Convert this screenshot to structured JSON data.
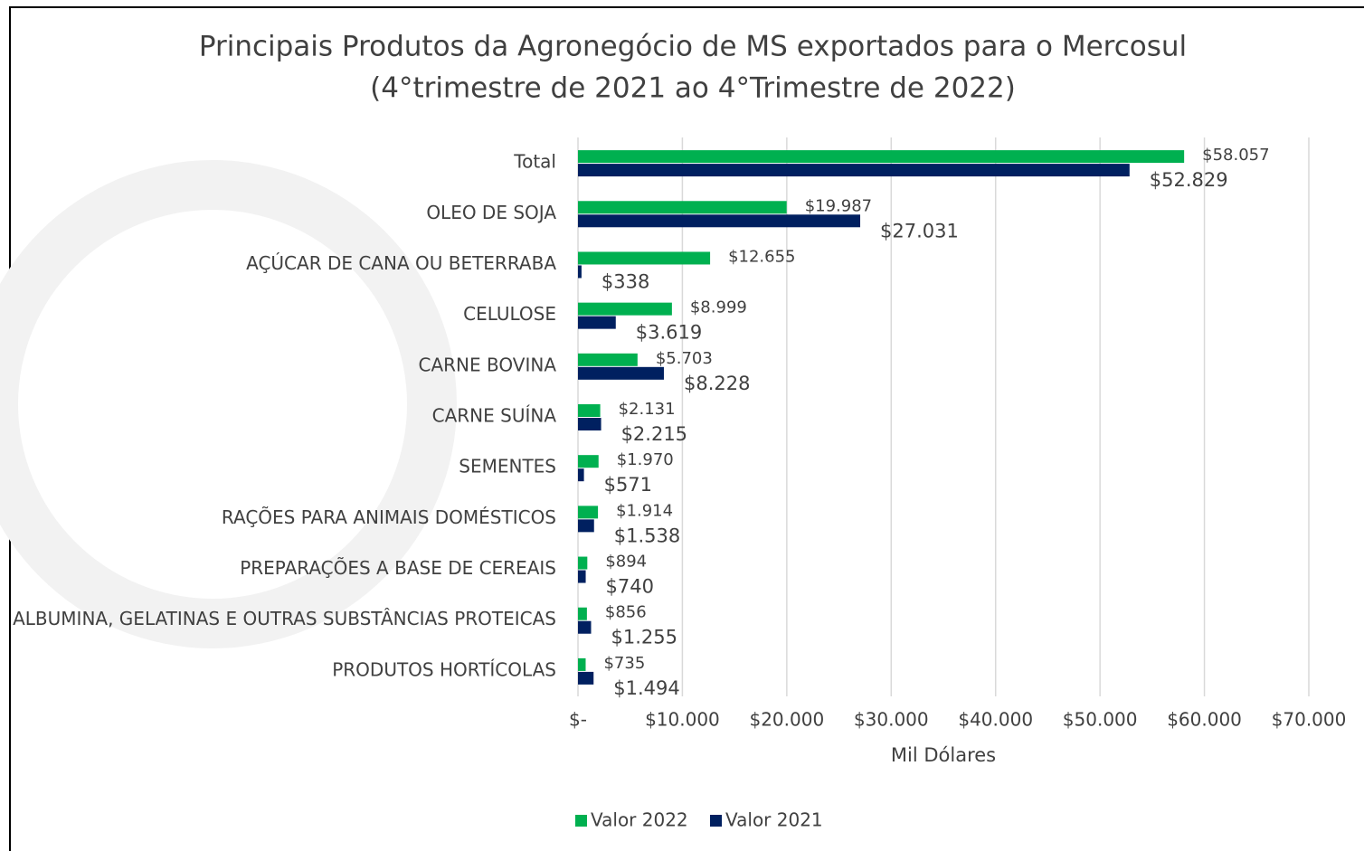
{
  "chart_data": {
    "type": "hbar",
    "title": "Principais Produtos da Agronegócio de MS exportados para o Mercosul",
    "subtitle": "(4°trimestre de 2021 ao 4°Trimestre de 2022)",
    "x_label": "Mil Dólares",
    "categories": [
      "Total",
      "OLEO DE SOJA",
      "AÇÚCAR DE CANA OU BETERRABA",
      "CELULOSE",
      "CARNE BOVINA",
      "CARNE SUÍNA",
      "SEMENTES",
      "RAÇÕES PARA ANIMAIS DOMÉSTICOS",
      "PREPARAÇÕES A BASE DE CEREAIS",
      "ALBUMINA, GELATINAS E OUTRAS SUBSTÂNCIAS PROTEICAS",
      "PRODUTOS HORTÍCOLAS"
    ],
    "series": [
      {
        "name": "Valor 2022",
        "color": "#00b050",
        "values": [
          58057,
          19987,
          12655,
          8999,
          5703,
          2131,
          1970,
          1914,
          894,
          856,
          735
        ],
        "value_labels": [
          "$58.057",
          "$19.987",
          "$12.655",
          "$8.999",
          "$5.703",
          "$2.131",
          "$1.970",
          "$1.914",
          "$894",
          "$856",
          "$735"
        ]
      },
      {
        "name": "Valor 2021",
        "color": "#002060",
        "values": [
          52829,
          27031,
          338,
          3619,
          8228,
          2215,
          571,
          1538,
          740,
          1255,
          1494
        ],
        "value_labels": [
          "$52.829",
          "$27.031",
          "$338",
          "$3.619",
          "$8.228",
          "$2.215",
          "$571",
          "$1.538",
          "$740",
          "$1.255",
          "$1.494"
        ]
      }
    ],
    "xlim": [
      0,
      70000
    ],
    "xticks": [
      {
        "value": 0,
        "label": "$-"
      },
      {
        "value": 10000,
        "label": "$10.000"
      },
      {
        "value": 20000,
        "label": "$20.000"
      },
      {
        "value": 30000,
        "label": "$30.000"
      },
      {
        "value": 40000,
        "label": "$40.000"
      },
      {
        "value": 50000,
        "label": "$50.000"
      },
      {
        "value": 60000,
        "label": "$60.000"
      },
      {
        "value": 70000,
        "label": "$70.000"
      }
    ],
    "grid": true,
    "legend": "bottom"
  }
}
